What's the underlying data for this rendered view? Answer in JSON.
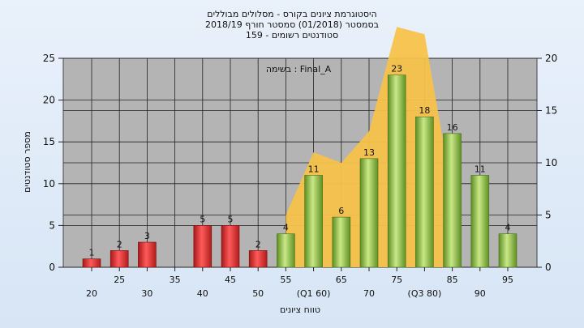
{
  "chart_data": {
    "type": "bar",
    "title_lines": [
      "היסטוגרמת ציונים בקורס - מסלולים מבוללים",
      "בסמסטר  (01/2018)  סמסטר חורף 2018/19",
      "סטודנטים רשומים - 159"
    ],
    "annotation": "בשימה : Final_A",
    "xlabel": "טווח ציונים",
    "ylabel": "מספר סטודנטים",
    "x": [
      20,
      25,
      30,
      35,
      40,
      45,
      50,
      55,
      60,
      65,
      70,
      75,
      80,
      85,
      90,
      95
    ],
    "x_tick_labels": [
      "20",
      "25",
      "30",
      "35",
      "40",
      "45",
      "50",
      "55",
      "(Q1 60)",
      "65",
      "70",
      "75",
      "(Q3 80)",
      "85",
      "90",
      "95"
    ],
    "values": [
      1,
      2,
      3,
      0,
      5,
      5,
      2,
      4,
      11,
      6,
      13,
      23,
      18,
      16,
      11,
      4
    ],
    "data_labels": [
      "1",
      "2",
      "3",
      "",
      "5",
      "5",
      "2",
      "4",
      "11",
      "6",
      "13",
      "23",
      "18",
      "16",
      "11",
      "4"
    ],
    "bar_colors": [
      "red",
      "red",
      "red",
      "red",
      "red",
      "red",
      "red",
      "green",
      "green",
      "green",
      "green",
      "green",
      "green",
      "green",
      "green",
      "green"
    ],
    "ylim": [
      0,
      25
    ],
    "y_ticks": [
      0,
      5,
      10,
      15,
      20,
      25
    ],
    "y2lim": [
      0,
      20
    ],
    "y2_ticks": [
      0,
      5,
      10,
      15,
      20
    ],
    "area_series": {
      "x": [
        55,
        60,
        65,
        70,
        75,
        80,
        85
      ],
      "values": [
        5,
        11,
        10,
        13,
        23,
        22.3,
        7
      ]
    },
    "colors": {
      "red": "#d42a2a",
      "green": "#8dbf3a",
      "area": "#f7c24a",
      "plot_bg": "#b4b4b4"
    },
    "grid": true
  }
}
